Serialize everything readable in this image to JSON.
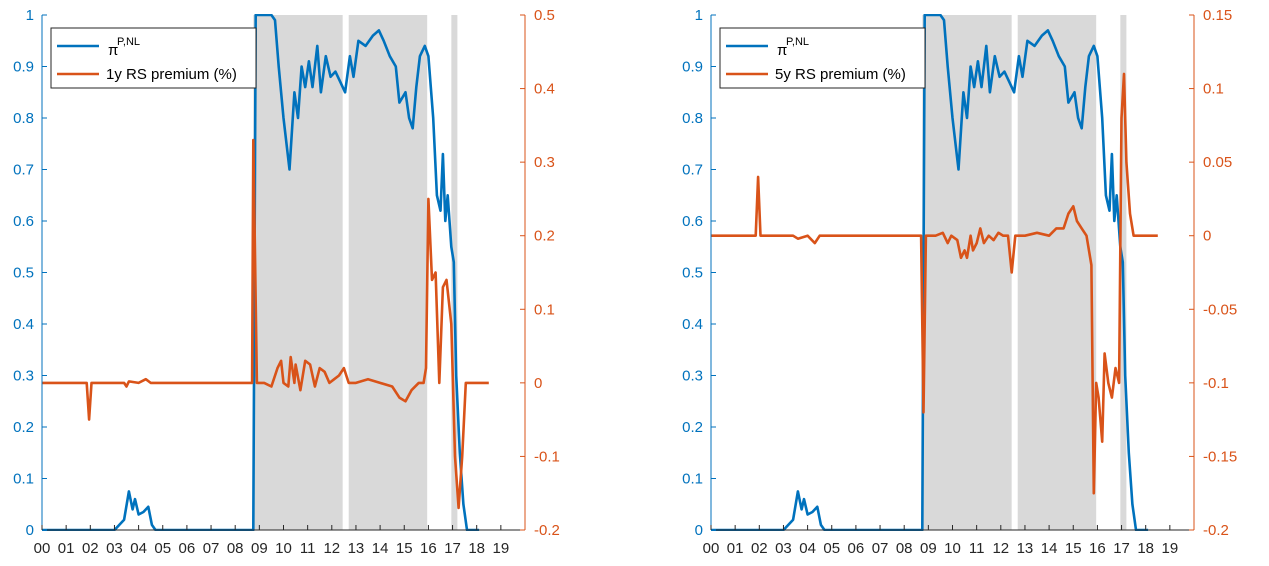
{
  "colors": {
    "blue": "#0072BD",
    "orange": "#D95319",
    "shade": "#D9D9D9",
    "axis": "#262626"
  },
  "x_ticks": [
    "00",
    "01",
    "02",
    "03",
    "04",
    "05",
    "06",
    "07",
    "08",
    "09",
    "10",
    "11",
    "12",
    "13",
    "14",
    "15",
    "16",
    "17",
    "18",
    "19"
  ],
  "recession_shading": [
    [
      2008.75,
      2012.45
    ],
    [
      2012.7,
      2015.95
    ],
    [
      2016.95,
      2017.2
    ]
  ],
  "chart_data": [
    {
      "type": "line",
      "xlabel": "",
      "xlim": [
        2000,
        2020
      ],
      "grid": false,
      "legend_position": "top-left",
      "left_axis": {
        "ylim": [
          0,
          1
        ],
        "ticks": [
          "0",
          "0.1",
          "0.2",
          "0.3",
          "0.4",
          "0.5",
          "0.6",
          "0.7",
          "0.8",
          "0.9",
          "1"
        ],
        "color": "#0072BD"
      },
      "right_axis": {
        "ylim": [
          -0.2,
          0.5
        ],
        "ticks": [
          "-0.2",
          "-0.1",
          "0",
          "0.1",
          "0.2",
          "0.3",
          "0.4",
          "0.5"
        ],
        "color": "#D95319"
      },
      "series": [
        {
          "name": "π",
          "superscript": "P,NL",
          "axis": "left",
          "color": "#0072BD",
          "points": [
            [
              2000,
              0
            ],
            [
              2003.0,
              0
            ],
            [
              2003.4,
              0.02
            ],
            [
              2003.6,
              0.075
            ],
            [
              2003.75,
              0.04
            ],
            [
              2003.85,
              0.06
            ],
            [
              2004.0,
              0.03
            ],
            [
              2004.2,
              0.035
            ],
            [
              2004.4,
              0.045
            ],
            [
              2004.55,
              0.01
            ],
            [
              2004.7,
              0
            ],
            [
              2008.75,
              0
            ],
            [
              2008.85,
              1
            ],
            [
              2009.5,
              1
            ],
            [
              2009.65,
              0.99
            ],
            [
              2009.8,
              0.9
            ],
            [
              2010.0,
              0.8
            ],
            [
              2010.25,
              0.7
            ],
            [
              2010.45,
              0.85
            ],
            [
              2010.6,
              0.8
            ],
            [
              2010.75,
              0.9
            ],
            [
              2010.9,
              0.86
            ],
            [
              2011.05,
              0.91
            ],
            [
              2011.2,
              0.86
            ],
            [
              2011.4,
              0.94
            ],
            [
              2011.55,
              0.85
            ],
            [
              2011.75,
              0.92
            ],
            [
              2011.95,
              0.88
            ],
            [
              2012.15,
              0.89
            ],
            [
              2012.35,
              0.87
            ],
            [
              2012.55,
              0.85
            ],
            [
              2012.75,
              0.92
            ],
            [
              2012.9,
              0.88
            ],
            [
              2013.1,
              0.95
            ],
            [
              2013.4,
              0.94
            ],
            [
              2013.7,
              0.96
            ],
            [
              2013.95,
              0.97
            ],
            [
              2014.15,
              0.95
            ],
            [
              2014.4,
              0.92
            ],
            [
              2014.65,
              0.9
            ],
            [
              2014.8,
              0.83
            ],
            [
              2015.05,
              0.85
            ],
            [
              2015.2,
              0.8
            ],
            [
              2015.35,
              0.78
            ],
            [
              2015.5,
              0.86
            ],
            [
              2015.65,
              0.92
            ],
            [
              2015.85,
              0.94
            ],
            [
              2016.0,
              0.92
            ],
            [
              2016.2,
              0.8
            ],
            [
              2016.35,
              0.65
            ],
            [
              2016.5,
              0.62
            ],
            [
              2016.6,
              0.73
            ],
            [
              2016.7,
              0.6
            ],
            [
              2016.8,
              0.65
            ],
            [
              2016.95,
              0.55
            ],
            [
              2017.05,
              0.52
            ],
            [
              2017.15,
              0.3
            ],
            [
              2017.3,
              0.15
            ],
            [
              2017.45,
              0.05
            ],
            [
              2017.6,
              0
            ],
            [
              2018.1,
              0
            ]
          ]
        },
        {
          "name": "1y RS premium (%)",
          "axis": "right",
          "color": "#D95319",
          "points": [
            [
              2000,
              0
            ],
            [
              2001.85,
              0
            ],
            [
              2001.95,
              -0.05
            ],
            [
              2002.05,
              0
            ],
            [
              2003.4,
              0
            ],
            [
              2003.5,
              -0.005
            ],
            [
              2003.6,
              0.002
            ],
            [
              2004.0,
              0
            ],
            [
              2004.3,
              0.005
            ],
            [
              2004.5,
              0
            ],
            [
              2008.7,
              0
            ],
            [
              2008.75,
              0.33
            ],
            [
              2008.9,
              0
            ],
            [
              2009.2,
              0
            ],
            [
              2009.5,
              -0.005
            ],
            [
              2009.75,
              0.02
            ],
            [
              2009.9,
              0.03
            ],
            [
              2010.0,
              0
            ],
            [
              2010.2,
              -0.005
            ],
            [
              2010.3,
              0.035
            ],
            [
              2010.45,
              0
            ],
            [
              2010.5,
              0.025
            ],
            [
              2010.7,
              -0.01
            ],
            [
              2010.9,
              0.03
            ],
            [
              2011.1,
              0.025
            ],
            [
              2011.3,
              -0.005
            ],
            [
              2011.5,
              0.02
            ],
            [
              2011.7,
              0.015
            ],
            [
              2011.9,
              0
            ],
            [
              2012.1,
              0.005
            ],
            [
              2012.3,
              0.01
            ],
            [
              2012.5,
              0.02
            ],
            [
              2012.7,
              0
            ],
            [
              2013.0,
              0
            ],
            [
              2013.5,
              0.005
            ],
            [
              2014.0,
              0
            ],
            [
              2014.5,
              -0.005
            ],
            [
              2014.8,
              -0.02
            ],
            [
              2015.05,
              -0.025
            ],
            [
              2015.3,
              -0.01
            ],
            [
              2015.6,
              0
            ],
            [
              2015.8,
              0
            ],
            [
              2015.9,
              0.02
            ],
            [
              2016.0,
              0.25
            ],
            [
              2016.15,
              0.14
            ],
            [
              2016.3,
              0.15
            ],
            [
              2016.45,
              0
            ],
            [
              2016.6,
              0.13
            ],
            [
              2016.75,
              0.14
            ],
            [
              2016.95,
              0.08
            ],
            [
              2017.1,
              -0.1
            ],
            [
              2017.25,
              -0.17
            ],
            [
              2017.4,
              -0.1
            ],
            [
              2017.55,
              0
            ],
            [
              2018.5,
              0
            ]
          ]
        }
      ]
    },
    {
      "type": "line",
      "xlabel": "",
      "xlim": [
        2000,
        2020
      ],
      "grid": false,
      "legend_position": "top-left",
      "left_axis": {
        "ylim": [
          0,
          1
        ],
        "ticks": [
          "0",
          "0.1",
          "0.2",
          "0.3",
          "0.4",
          "0.5",
          "0.6",
          "0.7",
          "0.8",
          "0.9",
          "1"
        ],
        "color": "#0072BD"
      },
      "right_axis": {
        "ylim": [
          -0.2,
          0.15
        ],
        "ticks": [
          "-0.2",
          "-0.15",
          "-0.1",
          "-0.05",
          "0",
          "0.05",
          "0.1",
          "0.15"
        ],
        "color": "#D95319"
      },
      "series": [
        {
          "name": "π",
          "superscript": "P,NL",
          "axis": "left",
          "color": "#0072BD",
          "points": [
            [
              2000,
              0
            ],
            [
              2003.0,
              0
            ],
            [
              2003.4,
              0.02
            ],
            [
              2003.6,
              0.075
            ],
            [
              2003.75,
              0.04
            ],
            [
              2003.85,
              0.06
            ],
            [
              2004.0,
              0.03
            ],
            [
              2004.2,
              0.035
            ],
            [
              2004.4,
              0.045
            ],
            [
              2004.55,
              0.01
            ],
            [
              2004.7,
              0
            ],
            [
              2008.75,
              0
            ],
            [
              2008.85,
              1
            ],
            [
              2009.5,
              1
            ],
            [
              2009.65,
              0.99
            ],
            [
              2009.8,
              0.9
            ],
            [
              2010.0,
              0.8
            ],
            [
              2010.25,
              0.7
            ],
            [
              2010.45,
              0.85
            ],
            [
              2010.6,
              0.8
            ],
            [
              2010.75,
              0.9
            ],
            [
              2010.9,
              0.86
            ],
            [
              2011.05,
              0.91
            ],
            [
              2011.2,
              0.86
            ],
            [
              2011.4,
              0.94
            ],
            [
              2011.55,
              0.85
            ],
            [
              2011.75,
              0.92
            ],
            [
              2011.95,
              0.88
            ],
            [
              2012.15,
              0.89
            ],
            [
              2012.35,
              0.87
            ],
            [
              2012.55,
              0.85
            ],
            [
              2012.75,
              0.92
            ],
            [
              2012.9,
              0.88
            ],
            [
              2013.1,
              0.95
            ],
            [
              2013.4,
              0.94
            ],
            [
              2013.7,
              0.96
            ],
            [
              2013.95,
              0.97
            ],
            [
              2014.15,
              0.95
            ],
            [
              2014.4,
              0.92
            ],
            [
              2014.65,
              0.9
            ],
            [
              2014.8,
              0.83
            ],
            [
              2015.05,
              0.85
            ],
            [
              2015.2,
              0.8
            ],
            [
              2015.35,
              0.78
            ],
            [
              2015.5,
              0.86
            ],
            [
              2015.65,
              0.92
            ],
            [
              2015.85,
              0.94
            ],
            [
              2016.0,
              0.92
            ],
            [
              2016.2,
              0.8
            ],
            [
              2016.35,
              0.65
            ],
            [
              2016.5,
              0.62
            ],
            [
              2016.6,
              0.73
            ],
            [
              2016.7,
              0.6
            ],
            [
              2016.8,
              0.65
            ],
            [
              2016.95,
              0.55
            ],
            [
              2017.05,
              0.52
            ],
            [
              2017.15,
              0.3
            ],
            [
              2017.3,
              0.15
            ],
            [
              2017.45,
              0.05
            ],
            [
              2017.6,
              0
            ],
            [
              2018.1,
              0
            ]
          ]
        },
        {
          "name": "5y RS premium (%)",
          "axis": "right",
          "color": "#D95319",
          "points": [
            [
              2000,
              0
            ],
            [
              2001.85,
              0
            ],
            [
              2001.95,
              0.04
            ],
            [
              2002.05,
              0
            ],
            [
              2003.4,
              0
            ],
            [
              2003.6,
              -0.002
            ],
            [
              2004.0,
              0
            ],
            [
              2004.3,
              -0.005
            ],
            [
              2004.5,
              0
            ],
            [
              2008.7,
              0
            ],
            [
              2008.8,
              -0.12
            ],
            [
              2008.9,
              0
            ],
            [
              2009.3,
              0
            ],
            [
              2009.6,
              0.002
            ],
            [
              2009.8,
              -0.005
            ],
            [
              2009.95,
              0
            ],
            [
              2010.2,
              -0.003
            ],
            [
              2010.35,
              -0.015
            ],
            [
              2010.5,
              -0.01
            ],
            [
              2010.6,
              -0.015
            ],
            [
              2010.75,
              0
            ],
            [
              2010.85,
              -0.01
            ],
            [
              2011.0,
              -0.005
            ],
            [
              2011.15,
              0.005
            ],
            [
              2011.3,
              -0.005
            ],
            [
              2011.5,
              0
            ],
            [
              2011.7,
              -0.003
            ],
            [
              2011.9,
              0.002
            ],
            [
              2012.1,
              0
            ],
            [
              2012.3,
              0
            ],
            [
              2012.45,
              -0.025
            ],
            [
              2012.6,
              0
            ],
            [
              2013.0,
              0
            ],
            [
              2013.5,
              0.002
            ],
            [
              2014.0,
              0
            ],
            [
              2014.3,
              0.005
            ],
            [
              2014.6,
              0.005
            ],
            [
              2014.8,
              0.015
            ],
            [
              2015.0,
              0.02
            ],
            [
              2015.15,
              0.01
            ],
            [
              2015.35,
              0.005
            ],
            [
              2015.55,
              0
            ],
            [
              2015.75,
              -0.02
            ],
            [
              2015.85,
              -0.175
            ],
            [
              2015.95,
              -0.1
            ],
            [
              2016.05,
              -0.11
            ],
            [
              2016.2,
              -0.14
            ],
            [
              2016.3,
              -0.08
            ],
            [
              2016.45,
              -0.1
            ],
            [
              2016.6,
              -0.11
            ],
            [
              2016.75,
              -0.09
            ],
            [
              2016.9,
              -0.1
            ],
            [
              2017.0,
              0.08
            ],
            [
              2017.1,
              0.11
            ],
            [
              2017.2,
              0.05
            ],
            [
              2017.35,
              0.015
            ],
            [
              2017.5,
              0
            ],
            [
              2018.5,
              0
            ]
          ]
        }
      ]
    }
  ]
}
